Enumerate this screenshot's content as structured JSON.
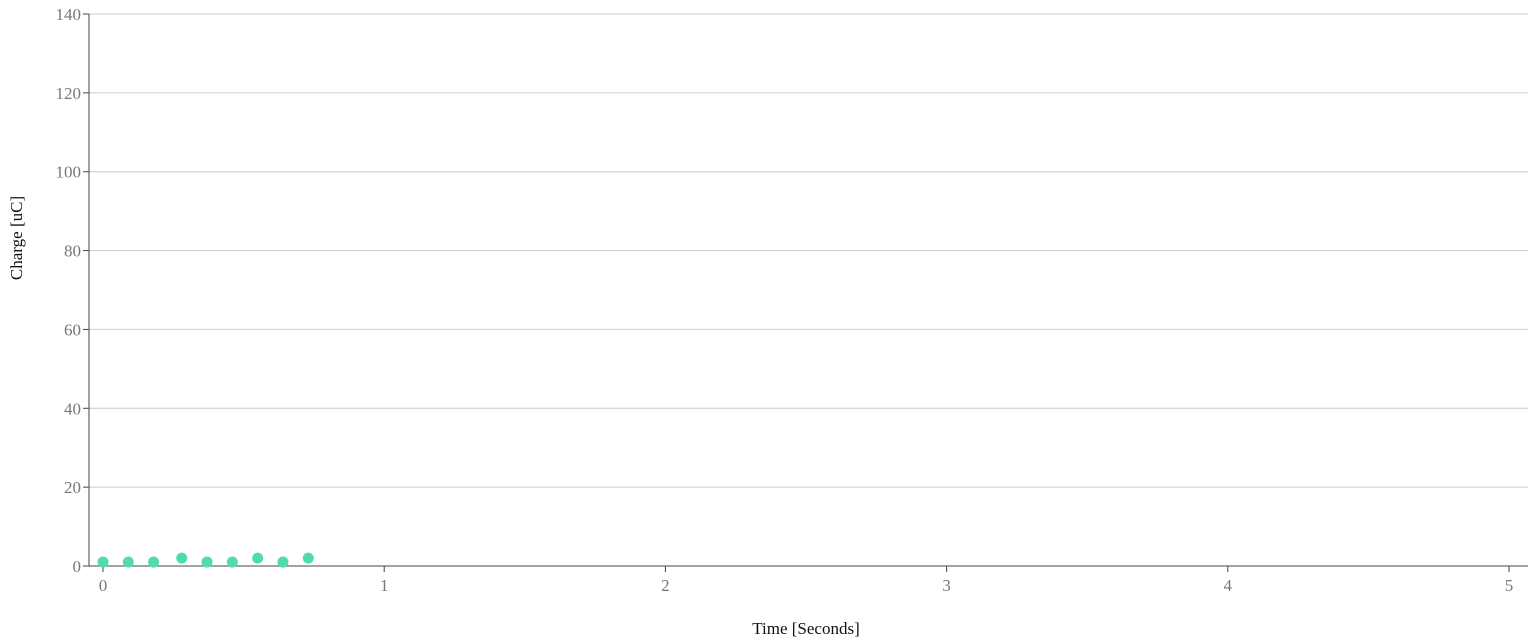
{
  "chart_data": {
    "type": "scatter",
    "xlabel": "Time [Seconds]",
    "ylabel": "Charge [uC]",
    "xlim": [
      0,
      5
    ],
    "ylim": [
      0,
      140
    ],
    "x_ticks": [
      0,
      1,
      2,
      3,
      4,
      5
    ],
    "y_ticks": [
      0,
      20,
      40,
      60,
      80,
      100,
      120,
      140
    ],
    "grid": "horizontal",
    "legend": "none",
    "series": [
      {
        "color": "#4fdbaa",
        "points": [
          {
            "x": 0.0,
            "y": 1
          },
          {
            "x": 0.09,
            "y": 1
          },
          {
            "x": 0.18,
            "y": 1
          },
          {
            "x": 0.28,
            "y": 2
          },
          {
            "x": 0.37,
            "y": 1
          },
          {
            "x": 0.46,
            "y": 1
          },
          {
            "x": 0.55,
            "y": 2
          },
          {
            "x": 0.64,
            "y": 1
          },
          {
            "x": 0.73,
            "y": 2
          }
        ]
      }
    ]
  }
}
